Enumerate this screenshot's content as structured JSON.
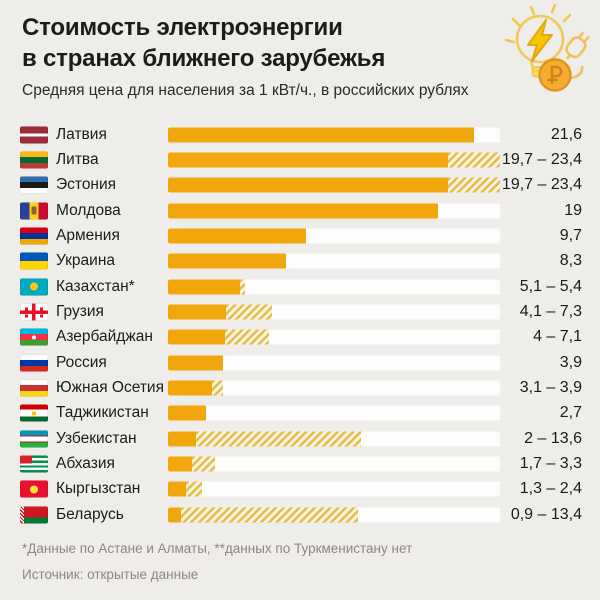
{
  "header": {
    "title_line1": "Стоимость электроэнергии",
    "title_line2": "в странах ближнего зарубежья",
    "subtitle": "Средняя цена для населения за 1 кВт/ч., в российских рублях"
  },
  "footer": {
    "footnote": "*Данные по Астане и Алматы, **данных по Туркменистану нет",
    "source": "Источник: открытые данные"
  },
  "icons": {
    "header_icon": "lightbulb-lightning-plug-ruble-coin"
  },
  "colors": {
    "background": "#EFEDE9",
    "bar_solid": "#F1A70B",
    "bar_hatch_stripe": "#E4BC4C",
    "bar_hatch_bg": "#FAF3DC",
    "bar_track": "#FDFDFD",
    "title_text": "#1C1C1C",
    "footer_text": "#8B8781"
  },
  "chart_data": {
    "type": "bar",
    "orientation": "horizontal",
    "title": "Стоимость электроэнергии в странах ближнего зарубежья",
    "subtitle": "Средняя цена для населения за 1 кВт/ч., в российских рублях",
    "unit": "российские рубли за 1 кВт/ч",
    "xlim": [
      0,
      23.4
    ],
    "grid": false,
    "legend": false,
    "value_label_position": "right",
    "hatch_meaning": "диапазон цен (от минимума до максимума)",
    "rows": [
      {
        "country": "Латвия",
        "flag": "lv",
        "min": 21.6,
        "max": 21.6,
        "label": "21,6"
      },
      {
        "country": "Литва",
        "flag": "lt",
        "min": 19.7,
        "max": 23.4,
        "label": "19,7 – 23,4"
      },
      {
        "country": "Эстония",
        "flag": "ee",
        "min": 19.7,
        "max": 23.4,
        "label": "19,7 – 23,4"
      },
      {
        "country": "Молдова",
        "flag": "md",
        "min": 19,
        "max": 19,
        "label": "19"
      },
      {
        "country": "Армения",
        "flag": "am",
        "min": 9.7,
        "max": 9.7,
        "label": "9,7"
      },
      {
        "country": "Украина",
        "flag": "ua",
        "min": 8.3,
        "max": 8.3,
        "label": "8,3"
      },
      {
        "country": "Казахстан*",
        "flag": "kz",
        "min": 5.1,
        "max": 5.4,
        "label": "5,1 – 5,4"
      },
      {
        "country": "Грузия",
        "flag": "ge",
        "min": 4.1,
        "max": 7.3,
        "label": "4,1 – 7,3"
      },
      {
        "country": "Азербайджан",
        "flag": "az",
        "min": 4,
        "max": 7.1,
        "label": "4 – 7,1"
      },
      {
        "country": "Россия",
        "flag": "ru",
        "min": 3.9,
        "max": 3.9,
        "label": "3,9"
      },
      {
        "country": "Южная Осетия",
        "flag": "os",
        "min": 3.1,
        "max": 3.9,
        "label": "3,1 – 3,9"
      },
      {
        "country": "Таджикистан",
        "flag": "tj",
        "min": 2.7,
        "max": 2.7,
        "label": "2,7"
      },
      {
        "country": "Узбекистан",
        "flag": "uz",
        "min": 2,
        "max": 13.6,
        "label": "2 – 13,6"
      },
      {
        "country": "Абхазия",
        "flag": "ab",
        "min": 1.7,
        "max": 3.3,
        "label": "1,7 – 3,3"
      },
      {
        "country": "Кыргызстан",
        "flag": "kg",
        "min": 1.3,
        "max": 2.4,
        "label": "1,3 – 2,4"
      },
      {
        "country": "Беларусь",
        "flag": "by",
        "min": 0.9,
        "max": 13.4,
        "label": "0,9 – 13,4"
      }
    ]
  }
}
